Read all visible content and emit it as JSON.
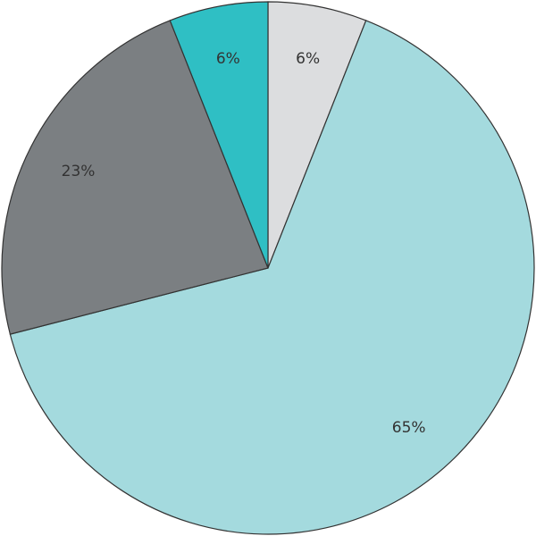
{
  "chart_data": {
    "type": "pie",
    "values": [
      6,
      65,
      23,
      6
    ],
    "value_labels": [
      "6%",
      "65%",
      "23%",
      "6%"
    ],
    "colors": [
      "#dcdddf",
      "#a4dade",
      "#7b7f82",
      "#2fbfc4"
    ]
  }
}
